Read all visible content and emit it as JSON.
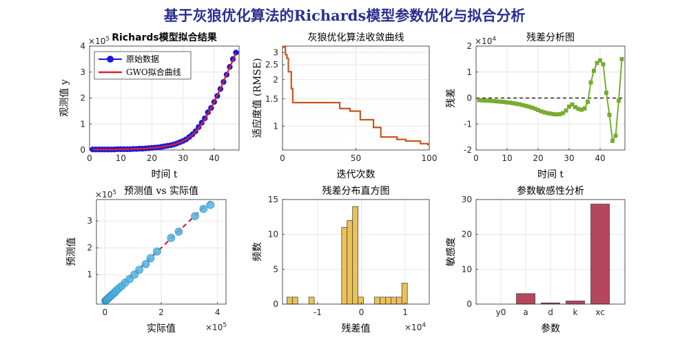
{
  "figure_title": "基于灰狼优化算法的Richards模型参数优化与拟合分析",
  "colors": {
    "title": "#2b2f8f",
    "data_points": "#1a1adb",
    "fit_line": "#e0202a",
    "convergence": "#c8561e",
    "residual": "#77ac30",
    "scatter": "#4db3e0",
    "histogram": "#edc15a",
    "sensitivity": "#b5465c"
  },
  "chart_data": [
    {
      "id": "fit",
      "type": "line",
      "title": "Richards模型拟合结果",
      "xlabel": "时间 t",
      "ylabel": "观测值 y",
      "y_exponent": "×10^5",
      "xlim": [
        0,
        48
      ],
      "ylim": [
        0,
        4
      ],
      "xticks": [
        "0",
        "10",
        "20",
        "30",
        "40"
      ],
      "yticks": [
        "0",
        "1",
        "2",
        "3",
        "4"
      ],
      "legend": [
        "原始数据",
        "GWO拟合曲线"
      ],
      "legend_position": "top-left",
      "grid": true,
      "x": [
        1,
        2,
        3,
        4,
        5,
        6,
        7,
        8,
        9,
        10,
        11,
        12,
        13,
        14,
        15,
        16,
        17,
        18,
        19,
        20,
        21,
        22,
        23,
        24,
        25,
        26,
        27,
        28,
        29,
        30,
        31,
        32,
        33,
        34,
        35,
        36,
        37,
        38,
        39,
        40,
        41,
        42,
        43,
        44,
        45,
        46,
        47
      ],
      "series": [
        {
          "name": "原始数据",
          "values": [
            0.02,
            0.02,
            0.02,
            0.02,
            0.02,
            0.02,
            0.02,
            0.02,
            0.03,
            0.03,
            0.03,
            0.03,
            0.03,
            0.04,
            0.04,
            0.05,
            0.05,
            0.06,
            0.07,
            0.08,
            0.09,
            0.1,
            0.12,
            0.14,
            0.16,
            0.18,
            0.21,
            0.25,
            0.3,
            0.35,
            0.41,
            0.5,
            0.6,
            0.72,
            0.88,
            1.05,
            1.22,
            1.45,
            1.62,
            1.85,
            2.08,
            2.35,
            2.62,
            2.9,
            3.2,
            3.5,
            3.75
          ]
        },
        {
          "name": "GWO拟合曲线",
          "values": [
            0.02,
            0.02,
            0.02,
            0.02,
            0.02,
            0.02,
            0.02,
            0.02,
            0.02,
            0.03,
            0.03,
            0.03,
            0.03,
            0.04,
            0.04,
            0.05,
            0.05,
            0.06,
            0.07,
            0.08,
            0.09,
            0.1,
            0.12,
            0.14,
            0.16,
            0.18,
            0.21,
            0.25,
            0.29,
            0.34,
            0.41,
            0.49,
            0.58,
            0.7,
            0.84,
            1.0,
            1.18,
            1.39,
            1.61,
            1.86,
            2.11,
            2.37,
            2.64,
            2.91,
            3.18,
            3.45,
            3.72
          ]
        }
      ]
    },
    {
      "id": "convergence",
      "type": "line",
      "title": "灰狼优化算法收敛曲线",
      "xlabel": "迭代次数",
      "ylabel": "适应度值 (RMSE)",
      "y_scale": "log",
      "xlim": [
        0,
        100
      ],
      "ylim": [
        0.7,
        3.3
      ],
      "xticks": [
        "0",
        "50",
        "100"
      ],
      "yticks": [
        "1",
        "1.5",
        "2",
        "2.5",
        "3"
      ],
      "grid": true,
      "x": [
        0,
        1,
        2,
        3,
        4,
        5,
        6,
        7,
        8,
        9,
        10,
        11,
        12,
        13,
        14,
        15,
        16,
        17,
        18,
        19,
        20,
        21,
        22,
        23,
        24,
        25,
        26,
        27,
        28,
        29,
        30,
        31,
        32,
        33,
        34,
        35,
        36,
        37,
        38,
        39,
        40,
        41,
        42,
        43,
        44,
        45,
        46,
        47,
        48,
        49,
        50,
        51,
        52,
        53,
        54,
        55,
        56,
        57,
        58,
        59,
        60,
        61,
        62,
        63,
        64,
        65,
        66,
        67,
        68,
        69,
        70,
        71,
        72,
        73,
        74,
        75,
        76,
        77,
        78,
        79,
        80,
        81,
        82,
        83,
        84,
        85,
        86,
        87,
        88,
        89,
        90,
        91,
        92,
        93,
        94,
        95,
        96,
        97,
        98,
        99,
        100
      ],
      "values": [
        3.25,
        3.25,
        2.9,
        2.75,
        2.25,
        2.25,
        1.75,
        1.42,
        1.42,
        1.42,
        1.42,
        1.42,
        1.42,
        1.42,
        1.42,
        1.42,
        1.42,
        1.42,
        1.42,
        1.42,
        1.42,
        1.42,
        1.42,
        1.42,
        1.42,
        1.42,
        1.42,
        1.42,
        1.42,
        1.42,
        1.42,
        1.42,
        1.42,
        1.42,
        1.42,
        1.42,
        1.42,
        1.42,
        1.42,
        1.3,
        1.3,
        1.3,
        1.3,
        1.3,
        1.3,
        1.3,
        1.25,
        1.25,
        1.25,
        1.25,
        1.25,
        1.25,
        1.25,
        1.1,
        1.1,
        1.1,
        1.1,
        1.1,
        1.1,
        1.1,
        1.1,
        1.1,
        0.98,
        0.98,
        0.98,
        0.98,
        0.98,
        0.85,
        0.85,
        0.85,
        0.85,
        0.85,
        0.85,
        0.85,
        0.85,
        0.85,
        0.85,
        0.85,
        0.82,
        0.82,
        0.82,
        0.82,
        0.82,
        0.82,
        0.8,
        0.8,
        0.8,
        0.8,
        0.8,
        0.8,
        0.8,
        0.8,
        0.8,
        0.8,
        0.77,
        0.77,
        0.77,
        0.77,
        0.77,
        0.76,
        0.76
      ]
    },
    {
      "id": "residual",
      "type": "line",
      "title": "残差分析图",
      "xlabel": "时间 t",
      "ylabel": "残差",
      "y_exponent": "×10^4",
      "xlim": [
        0,
        48
      ],
      "ylim": [
        -2,
        2
      ],
      "xticks": [
        "0",
        "10",
        "20",
        "30",
        "40"
      ],
      "yticks": [
        "-2",
        "-1",
        "0",
        "1",
        "2"
      ],
      "grid": true,
      "reference_line": 0,
      "x": [
        1,
        2,
        3,
        4,
        5,
        6,
        7,
        8,
        9,
        10,
        11,
        12,
        13,
        14,
        15,
        16,
        17,
        18,
        19,
        20,
        21,
        22,
        23,
        24,
        25,
        26,
        27,
        28,
        29,
        30,
        31,
        32,
        33,
        34,
        35,
        36,
        37,
        38,
        39,
        40,
        41,
        42,
        43,
        44,
        45,
        46,
        47
      ],
      "values": [
        -0.08,
        -0.09,
        -0.1,
        -0.1,
        -0.11,
        -0.12,
        -0.13,
        -0.14,
        -0.15,
        -0.17,
        -0.18,
        -0.2,
        -0.22,
        -0.24,
        -0.27,
        -0.3,
        -0.33,
        -0.37,
        -0.41,
        -0.46,
        -0.51,
        -0.55,
        -0.58,
        -0.6,
        -0.62,
        -0.63,
        -0.62,
        -0.58,
        -0.48,
        -0.33,
        -0.25,
        -0.35,
        -0.42,
        -0.45,
        -0.4,
        -0.15,
        0.6,
        1.05,
        1.35,
        1.45,
        1.3,
        0.2,
        -0.65,
        -1.65,
        -1.45,
        -0.1,
        1.5
      ]
    },
    {
      "id": "pred_vs_actual",
      "type": "scatter",
      "title": "预测值 vs 实际值",
      "xlabel": "实际值",
      "ylabel": "预测值",
      "x_exponent": "×10^5",
      "y_exponent": "×10^5",
      "xlim": [
        -0.3,
        4.3
      ],
      "ylim": [
        -0.1,
        3.8
      ],
      "xticks": [
        "0",
        "2",
        "4"
      ],
      "yticks": [
        "1",
        "2",
        "3"
      ],
      "grid": true,
      "reference_line": "y=x",
      "x": [
        0.02,
        0.02,
        0.03,
        0.03,
        0.04,
        0.05,
        0.06,
        0.07,
        0.09,
        0.12,
        0.14,
        0.18,
        0.21,
        0.25,
        0.3,
        0.35,
        0.41,
        0.5,
        0.6,
        0.72,
        0.88,
        1.05,
        1.22,
        1.45,
        1.62,
        1.85,
        2.35,
        2.62,
        3.2,
        3.5,
        3.75
      ],
      "values": [
        0.02,
        0.02,
        0.03,
        0.03,
        0.04,
        0.05,
        0.06,
        0.07,
        0.09,
        0.12,
        0.14,
        0.18,
        0.21,
        0.25,
        0.29,
        0.34,
        0.41,
        0.49,
        0.58,
        0.7,
        0.84,
        1.0,
        1.18,
        1.39,
        1.61,
        1.86,
        2.37,
        2.6,
        3.18,
        3.45,
        3.6
      ]
    },
    {
      "id": "hist",
      "type": "bar",
      "title": "残差分布直方图",
      "xlabel": "残差值",
      "ylabel": "频数",
      "x_exponent": "×10^4",
      "xlim": [
        -1.8,
        1.55
      ],
      "ylim": [
        0,
        15
      ],
      "xticks": [
        "-1",
        "0",
        "1"
      ],
      "yticks": [
        "0",
        "5",
        "10",
        "15"
      ],
      "grid": true,
      "bin_width": 0.125,
      "bin_starts": [
        -1.7,
        -1.575,
        -1.2,
        -0.45,
        -0.325,
        -0.2,
        -0.075,
        0.3,
        0.425,
        0.55,
        0.675,
        0.8,
        0.925
      ],
      "values": [
        1,
        1,
        1,
        11,
        12,
        14,
        1,
        1,
        1,
        1,
        1,
        1,
        3
      ]
    },
    {
      "id": "sensitivity",
      "type": "bar",
      "title": "参数敏感性分析",
      "xlabel": "参数",
      "ylabel": "敏感度",
      "ylim": [
        0,
        30
      ],
      "yticks": [
        "0",
        "10",
        "20",
        "30"
      ],
      "grid": true,
      "categories": [
        "y0",
        "a",
        "d",
        "k",
        "xc"
      ],
      "values": [
        0,
        3.0,
        0.35,
        0.9,
        28.7
      ]
    }
  ]
}
